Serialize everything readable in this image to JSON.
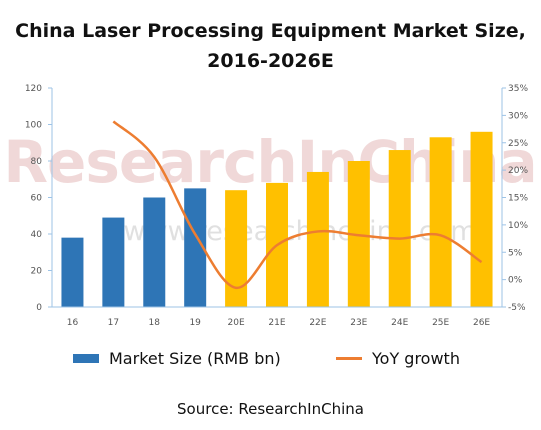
{
  "title_line1": "China Laser Processing Equipment Market Size,",
  "title_line2": "2016-2026E",
  "source": "Source: ResearchInChina",
  "watermark_main": "ResearchInChina",
  "watermark_url": "www.researchinchina.com",
  "colors": {
    "actual_bar": "#2e75b6",
    "forecast_bar": "#ffc000",
    "line": "#ed7d31",
    "axis": "#9dc3e6"
  },
  "chart_data": {
    "type": "bar",
    "categories": [
      "16",
      "17",
      "18",
      "19",
      "20E",
      "21E",
      "22E",
      "23E",
      "24E",
      "25E",
      "26E"
    ],
    "series": [
      {
        "name": "Market Size (RMB bn)",
        "type": "bar",
        "axis": "left",
        "values": [
          38,
          49,
          60,
          65,
          64,
          68,
          74,
          80,
          86,
          93,
          96
        ],
        "forecast_from_index": 4
      },
      {
        "name": "YoY growth",
        "type": "line",
        "axis": "right",
        "unit": "%",
        "values": [
          null,
          28.9,
          22.4,
          8.3,
          -1.5,
          6.3,
          8.8,
          8.1,
          7.5,
          8.1,
          3.2
        ]
      }
    ],
    "ylim_left": [
      0,
      120
    ],
    "yticks_left": [
      "0",
      "20",
      "40",
      "60",
      "80",
      "100",
      "120"
    ],
    "ylim_right": [
      -5,
      35
    ],
    "yticks_right": [
      "-5%",
      "0%",
      "5%",
      "10%",
      "15%",
      "20%",
      "25%",
      "30%",
      "35%"
    ],
    "grid": false,
    "legend_position": "bottom"
  }
}
